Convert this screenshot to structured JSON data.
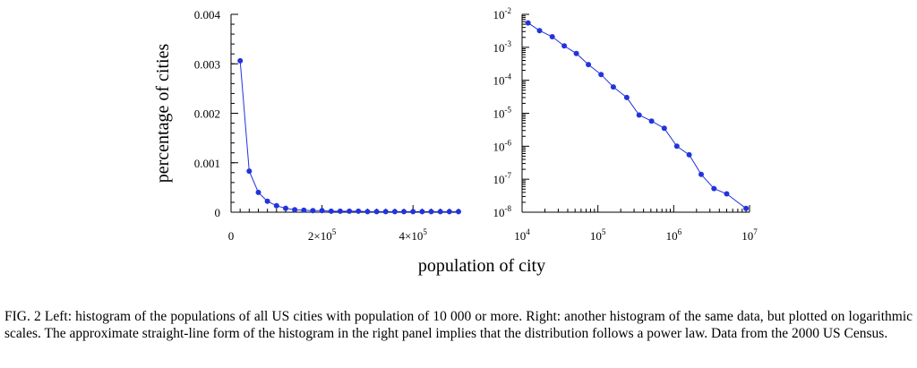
{
  "caption": {
    "label": "FIG. 2",
    "text": "Left: histogram of the populations of all US cities with population of 10 000 or more. Right: another histogram of the same data, but plotted on logarithmic scales. The approximate straight-line form of the histogram in the right panel implies that the distribution follows a power law. Data from the 2000 US Census."
  },
  "shared_xlabel": "population of city",
  "colors": {
    "series": "#2233dd",
    "axis": "#000000"
  },
  "chart_data": [
    {
      "type": "line",
      "panel": "left",
      "ylabel": "percentage of cities",
      "xlim": [
        0,
        500000
      ],
      "ylim": [
        0,
        0.004
      ],
      "x_ticks": [
        {
          "value": 0,
          "label": "0"
        },
        {
          "value": 200000,
          "base": "2×10",
          "exp": "5"
        },
        {
          "value": 400000,
          "base": "4×10",
          "exp": "5"
        }
      ],
      "y_ticks": [
        {
          "value": 0,
          "label": "0"
        },
        {
          "value": 0.001,
          "label": "0.001"
        },
        {
          "value": 0.002,
          "label": "0.002"
        },
        {
          "value": 0.003,
          "label": "0.003"
        },
        {
          "value": 0.004,
          "label": "0.004"
        }
      ],
      "markers": true,
      "series": [
        {
          "x": [
            20000,
            40000,
            60000,
            80000,
            100000,
            120000,
            140000,
            160000,
            180000,
            200000,
            220000,
            240000,
            260000,
            280000,
            300000,
            320000,
            340000,
            360000,
            380000,
            400000,
            420000,
            440000,
            460000,
            480000,
            500000
          ],
          "y": [
            0.00306,
            0.00083,
            0.0004,
            0.00022,
            0.00013,
            8e-05,
            5e-05,
            4e-05,
            3e-05,
            3e-05,
            2e-05,
            2e-05,
            2e-05,
            2e-05,
            1e-05,
            1e-05,
            1e-05,
            1e-05,
            1e-05,
            1e-05,
            1e-05,
            1e-05,
            1e-05,
            1e-05,
            1e-05
          ]
        }
      ]
    },
    {
      "type": "line",
      "panel": "right",
      "xscale": "log",
      "yscale": "log",
      "xlim": [
        10000,
        10000000
      ],
      "ylim": [
        1e-08,
        0.01
      ],
      "x_ticks": [
        {
          "value": 10000,
          "base": "10",
          "exp": "4"
        },
        {
          "value": 100000,
          "base": "10",
          "exp": "5"
        },
        {
          "value": 1000000,
          "base": "10",
          "exp": "6"
        },
        {
          "value": 10000000,
          "base": "10",
          "exp": "7"
        }
      ],
      "y_ticks": [
        {
          "value": 1e-08,
          "base": "10",
          "exp": "-8"
        },
        {
          "value": 1e-07,
          "base": "10",
          "exp": "-7"
        },
        {
          "value": 1e-06,
          "base": "10",
          "exp": "-6"
        },
        {
          "value": 1e-05,
          "base": "10",
          "exp": "-5"
        },
        {
          "value": 0.0001,
          "base": "10",
          "exp": "-4"
        },
        {
          "value": 0.001,
          "base": "10",
          "exp": "-3"
        },
        {
          "value": 0.01,
          "base": "10",
          "exp": "-2"
        }
      ],
      "markers": true,
      "series": [
        {
          "x": [
            12000,
            17000,
            25000,
            36000,
            52000,
            75000,
            110000,
            160000,
            240000,
            350000,
            510000,
            750000,
            1100000,
            1600000,
            2300000,
            3400000,
            5000000,
            9000000
          ],
          "y": [
            0.0055,
            0.0032,
            0.0021,
            0.0011,
            0.00065,
            0.0003,
            0.00015,
            6.3e-05,
            3e-05,
            8.8e-06,
            5.8e-06,
            3.5e-06,
            1e-06,
            5.5e-07,
            1.4e-07,
            5.2e-08,
            3.6e-08,
            1.3e-08
          ]
        }
      ]
    }
  ]
}
